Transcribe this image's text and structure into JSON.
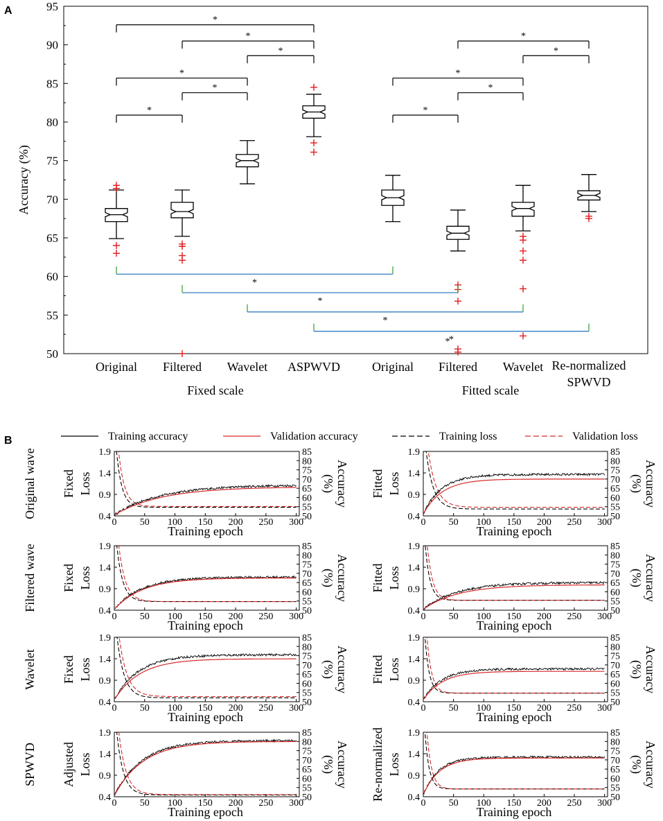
{
  "panel_a_label": "A",
  "panel_b_label": "B",
  "colors": {
    "box": "#000000",
    "outlier": "#e41a1c",
    "sig_black": "#000000",
    "sig_blue": "#1f6fbf",
    "sig_green": "#2ca02c",
    "train": "#000000",
    "val": "#d62728"
  },
  "chart_data": [
    {
      "type": "box",
      "title": "",
      "ylabel": "Accuracy (%)",
      "ylim": [
        50,
        95
      ],
      "yticks": [
        50,
        55,
        60,
        65,
        70,
        75,
        80,
        85,
        90,
        95
      ],
      "groups": [
        {
          "label": "Fixed scale",
          "categories": [
            "Original",
            "Filtered",
            "Wavelet",
            "ASPWVD"
          ]
        },
        {
          "label": "Fitted scale",
          "categories": [
            "Original",
            "Filtered",
            "Wavelet",
            "Re-normalized SPWVD"
          ]
        }
      ],
      "boxes": [
        {
          "label": "Original",
          "group": "Fixed scale",
          "whisker_low": 64.9,
          "q1": 67.1,
          "median": 68.0,
          "q3": 68.8,
          "whisker_high": 71.2,
          "outliers": [
            71.8,
            71.4,
            64.0,
            63.0
          ]
        },
        {
          "label": "Filtered",
          "group": "Fixed scale",
          "whisker_low": 65.2,
          "q1": 67.6,
          "median": 68.4,
          "q3": 69.6,
          "whisker_high": 71.2,
          "outliers": [
            64.2,
            63.9,
            62.7,
            62.1,
            50.0
          ]
        },
        {
          "label": "Wavelet",
          "group": "Fixed scale",
          "whisker_low": 72.0,
          "q1": 74.2,
          "median": 75.0,
          "q3": 75.8,
          "whisker_high": 77.6,
          "outliers": []
        },
        {
          "label": "ASPWVD",
          "group": "Fixed scale",
          "whisker_low": 78.1,
          "q1": 80.5,
          "median": 81.3,
          "q3": 82.1,
          "whisker_high": 83.6,
          "outliers": [
            84.5,
            77.3,
            76.1
          ]
        },
        {
          "label": "Original",
          "group": "Fitted scale",
          "whisker_low": 67.1,
          "q1": 69.2,
          "median": 70.2,
          "q3": 71.2,
          "whisker_high": 73.1,
          "outliers": []
        },
        {
          "label": "Filtered",
          "group": "Fitted scale",
          "whisker_low": 63.3,
          "q1": 64.8,
          "median": 65.6,
          "q3": 66.5,
          "whisker_high": 68.6,
          "outliers": [
            58.9,
            58.3,
            56.8,
            50.6,
            50.2
          ]
        },
        {
          "label": "Wavelet",
          "group": "Fitted scale",
          "whisker_low": 65.9,
          "q1": 67.8,
          "median": 68.8,
          "q3": 69.6,
          "whisker_high": 71.8,
          "outliers": [
            65.2,
            64.7,
            63.3,
            62.1,
            58.4,
            52.3
          ]
        },
        {
          "label": "Re-normalized SPWVD",
          "group": "Fitted scale",
          "whisker_low": 68.4,
          "q1": 69.9,
          "median": 70.5,
          "q3": 71.1,
          "whisker_high": 73.2,
          "outliers": [
            67.8,
            67.5
          ]
        }
      ],
      "significance": [
        {
          "from": 0,
          "to": 3,
          "y": 92.6,
          "label": "*",
          "color": "black"
        },
        {
          "from": 1,
          "to": 3,
          "y": 90.5,
          "label": "*",
          "color": "black"
        },
        {
          "from": 2,
          "to": 3,
          "y": 88.6,
          "label": "*",
          "color": "black"
        },
        {
          "from": 0,
          "to": 2,
          "y": 85.7,
          "label": "*",
          "color": "black"
        },
        {
          "from": 1,
          "to": 2,
          "y": 83.8,
          "label": "*",
          "color": "black"
        },
        {
          "from": 0,
          "to": 1,
          "y": 80.9,
          "label": "*",
          "color": "black"
        },
        {
          "from": 5,
          "to": 7,
          "y": 90.5,
          "label": "*",
          "color": "black"
        },
        {
          "from": 6,
          "to": 7,
          "y": 88.6,
          "label": "*",
          "color": "black"
        },
        {
          "from": 4,
          "to": 6,
          "y": 85.7,
          "label": "*",
          "color": "black"
        },
        {
          "from": 5,
          "to": 6,
          "y": 83.8,
          "label": "*",
          "color": "black"
        },
        {
          "from": 4,
          "to": 5,
          "y": 80.9,
          "label": "*",
          "color": "black"
        },
        {
          "from": 0,
          "to": 4,
          "y": 60.3,
          "label": "*",
          "color": "blue",
          "dir": "up"
        },
        {
          "from": 1,
          "to": 5,
          "y": 57.9,
          "label": "*",
          "color": "blue",
          "dir": "up"
        },
        {
          "from": 2,
          "to": 6,
          "y": 55.4,
          "label": "*",
          "color": "blue",
          "dir": "up"
        },
        {
          "from": 3,
          "to": 7,
          "y": 52.9,
          "label": "*",
          "color": "blue",
          "dir": "up"
        }
      ],
      "sig_extra_star": {
        "x_between": [
          4,
          5
        ],
        "y": 51.2,
        "label": "*"
      }
    },
    {
      "type": "line",
      "legend": {
        "placement": "top",
        "entries": [
          {
            "label": "Training accuracy",
            "style": "solid",
            "color": "black"
          },
          {
            "label": "Validation accuracy",
            "style": "solid",
            "color": "red"
          },
          {
            "label": "Training loss",
            "style": "dashed",
            "color": "black"
          },
          {
            "label": "Validation loss",
            "style": "dashed",
            "color": "red"
          }
        ]
      },
      "xlabel": "Training epoch",
      "ylabel_left": "Loss",
      "ylabel_right": "Accuracy (%)",
      "ylabel_right_lines": [
        "Accuracy",
        "(%)"
      ],
      "xlim": [
        0,
        305
      ],
      "xticks": [
        0,
        50,
        100,
        150,
        200,
        250,
        300
      ],
      "xtick_labels": [
        "0",
        "50",
        "100",
        "150",
        "200",
        "250",
        "300"
      ],
      "ylim_left": [
        0.4,
        1.9
      ],
      "yticks_left": [
        "0.4",
        "0.9",
        "1.4",
        "1.9"
      ],
      "ylim_right": [
        50,
        85
      ],
      "yticks_right": [
        "50",
        "55",
        "60",
        "65",
        "70",
        "75",
        "80",
        "85"
      ],
      "rows": [
        {
          "row_label": "Original wave"
        },
        {
          "row_label": "Filtered wave"
        },
        {
          "row_label": "Wavelet"
        },
        {
          "row_label": "SPWVD"
        }
      ],
      "subplots": [
        {
          "row": 0,
          "col": 0,
          "side_label": "Fixed",
          "train_acc_final": 66.8,
          "val_acc_final": 65.8,
          "acc_start": 50.5,
          "acc_tau": 75,
          "loss_start": 1.95,
          "loss_tau": 9,
          "loss_final": 0.62,
          "train_loss_final": 0.6
        },
        {
          "row": 0,
          "col": 1,
          "side_label": "Fitted",
          "train_acc_final": 72.5,
          "val_acc_final": 70.0,
          "acc_start": 51.0,
          "acc_tau": 30,
          "loss_start": 1.95,
          "loss_tau": 12,
          "loss_final": 0.6,
          "train_loss_final": 0.56
        },
        {
          "row": 1,
          "col": 0,
          "side_label": "Fixed",
          "train_acc_final": 68.0,
          "val_acc_final": 67.5,
          "acc_start": 50.5,
          "acc_tau": 45,
          "loss_start": 1.95,
          "loss_tau": 10,
          "loss_final": 0.6,
          "train_loss_final": 0.6
        },
        {
          "row": 1,
          "col": 1,
          "side_label": "Fitted",
          "train_acc_final": 65.0,
          "val_acc_final": 63.8,
          "acc_start": 50.5,
          "acc_tau": 55,
          "loss_start": 1.95,
          "loss_tau": 8,
          "loss_final": 0.63,
          "train_loss_final": 0.63
        },
        {
          "row": 2,
          "col": 0,
          "side_label": "Fixed",
          "train_acc_final": 75.5,
          "val_acc_final": 73.3,
          "acc_start": 51.0,
          "acc_tau": 40,
          "loss_start": 1.95,
          "loss_tau": 12,
          "loss_final": 0.52,
          "train_loss_final": 0.49
        },
        {
          "row": 2,
          "col": 1,
          "side_label": "Fitted",
          "train_acc_final": 67.8,
          "val_acc_final": 66.5,
          "acc_start": 51.0,
          "acc_tau": 30,
          "loss_start": 1.95,
          "loss_tau": 7,
          "loss_final": 0.6,
          "train_loss_final": 0.6
        },
        {
          "row": 3,
          "col": 0,
          "side_label": "Adjusted",
          "train_acc_final": 80.5,
          "val_acc_final": 80.0,
          "acc_start": 50.5,
          "acc_tau": 45,
          "loss_start": 1.95,
          "loss_tau": 11,
          "loss_final": 0.45,
          "train_loss_final": 0.44
        },
        {
          "row": 3,
          "col": 1,
          "side_label": "Re-normalized",
          "train_acc_final": 71.5,
          "val_acc_final": 71.0,
          "acc_start": 51.0,
          "acc_tau": 25,
          "loss_start": 1.95,
          "loss_tau": 7,
          "loss_final": 0.58,
          "train_loss_final": 0.58
        }
      ]
    }
  ]
}
